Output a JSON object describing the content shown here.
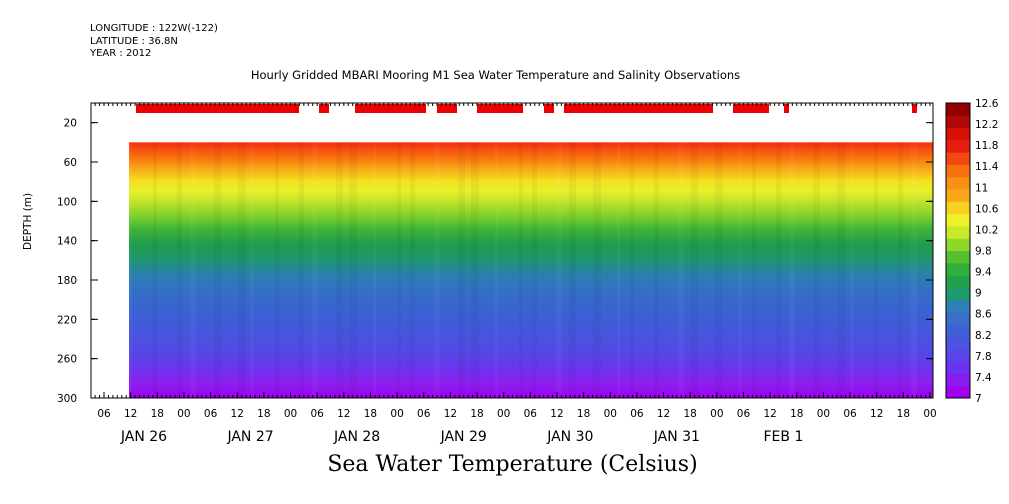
{
  "header": {
    "longitude": "LONGITUDE : 122W(-122)",
    "latitude": "LATITUDE : 36.8N",
    "year": "YEAR : 2012",
    "title": "Hourly Gridded MBARI Mooring M1 Sea Water Temperature and Salinity Observations"
  },
  "colors": {
    "palette": [
      "#a000f0",
      "#8a1cf0",
      "#6c33f0",
      "#5a46e8",
      "#4a55df",
      "#3f5fd6",
      "#3a6ec8",
      "#2f80b4",
      "#1f9a6c",
      "#23a14a",
      "#2fb03a",
      "#55c030",
      "#8ed82a",
      "#c8e82a",
      "#f0f02a",
      "#f8d020",
      "#f8a818",
      "#f89014",
      "#f87010",
      "#f04810",
      "#e81c10",
      "#d81008",
      "#b00808",
      "#900000"
    ],
    "surface_marker": "#ee0000"
  },
  "chart_data": {
    "type": "heatmap",
    "title": "Hourly Gridded MBARI Mooring M1 Sea Water Temperature and Salinity Observations",
    "xlabel": "",
    "ylabel": "DEPTH (m)",
    "colorbar_label": "Sea Water Temperature (Celsius)",
    "y_range": [
      300,
      0
    ],
    "y_ticks": [
      20,
      60,
      100,
      140,
      180,
      220,
      260,
      300
    ],
    "x_hour_ticks": [
      "06",
      "12",
      "18",
      "00",
      "06",
      "12",
      "18",
      "00",
      "06",
      "12",
      "18",
      "00",
      "06",
      "12",
      "18",
      "00",
      "06",
      "12",
      "18",
      "00",
      "06",
      "12",
      "18",
      "00",
      "06",
      "12",
      "18",
      "00",
      "06",
      "12",
      "18",
      "00"
    ],
    "x_day_labels": [
      "JAN 26",
      "JAN 27",
      "JAN 28",
      "JAN 29",
      "JAN 30",
      "JAN 31",
      "FEB  1"
    ],
    "colorbar_ticks": [
      "7",
      "7.4",
      "7.8",
      "8.2",
      "8.6",
      "9",
      "9.4",
      "9.8",
      "10.2",
      "10.6",
      "11",
      "11.4",
      "11.8",
      "12.2",
      "12.6"
    ],
    "data_start": "JAN 26 12",
    "surface_profile": [
      {
        "depth": 40,
        "temperature": 11.9
      },
      {
        "depth": 50,
        "temperature": 11.6
      },
      {
        "depth": 60,
        "temperature": 11.2
      },
      {
        "depth": 70,
        "temperature": 10.8
      },
      {
        "depth": 80,
        "temperature": 10.5
      },
      {
        "depth": 90,
        "temperature": 10.2
      },
      {
        "depth": 100,
        "temperature": 9.9
      },
      {
        "depth": 120,
        "temperature": 9.4
      },
      {
        "depth": 140,
        "temperature": 9.0
      },
      {
        "depth": 160,
        "temperature": 8.6
      },
      {
        "depth": 180,
        "temperature": 8.3
      },
      {
        "depth": 200,
        "temperature": 8.1
      },
      {
        "depth": 220,
        "temperature": 7.9
      },
      {
        "depth": 240,
        "temperature": 7.8
      },
      {
        "depth": 260,
        "temperature": 7.6
      },
      {
        "depth": 280,
        "temperature": 7.3
      },
      {
        "depth": 300,
        "temperature": 7.1
      }
    ]
  },
  "xaxis_title": "Sea Water Temperature (Celsius)"
}
